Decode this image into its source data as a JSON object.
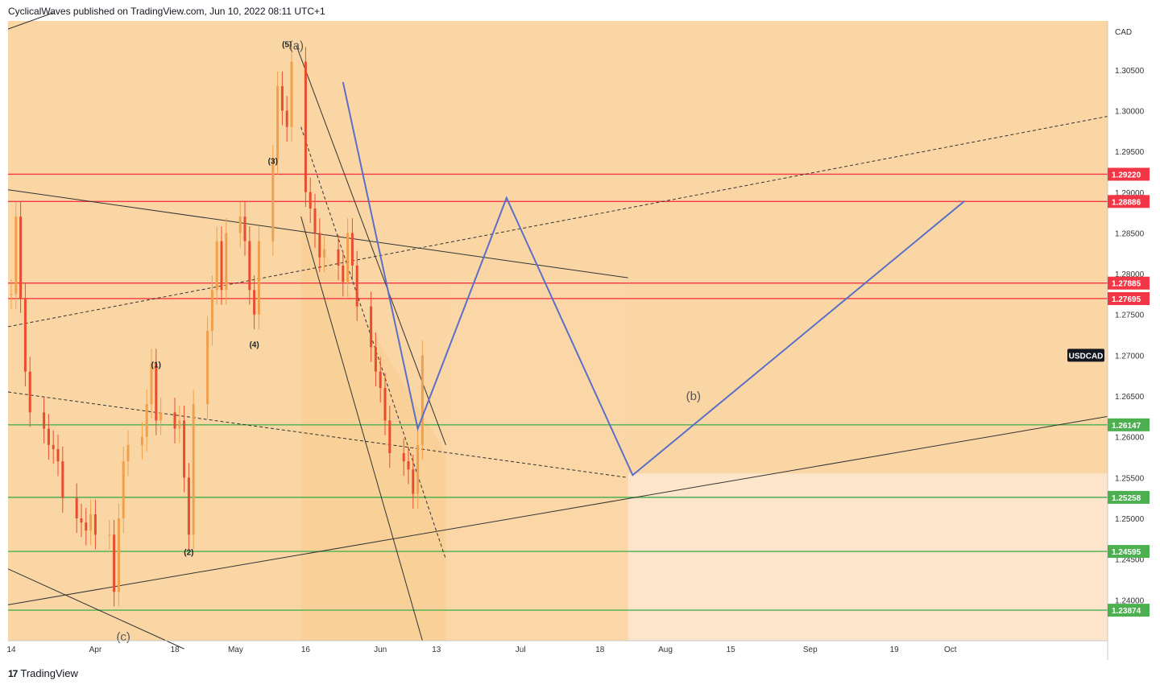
{
  "header": {
    "publish_line": "CyclicalWaves published on TradingView.com, Jun 10, 2022 08:11 UTC+1"
  },
  "footer": {
    "logo_mark": "17",
    "brand": "TradingView"
  },
  "colors": {
    "background": "#fad6a5",
    "light_zone": "#fce5ca",
    "candle_down": "#e84d2e",
    "candle_up": "#f0a04b",
    "resistance": "#f23645",
    "support": "#4caf50",
    "projection": "#5b6fc9",
    "trendline": "#333333"
  },
  "chart_data": {
    "type": "line",
    "symbol": "USDCAD",
    "currency": "CAD",
    "ylim": [
      1.235,
      1.311
    ],
    "x_ticks": [
      "14",
      "Apr",
      "18",
      "May",
      "16",
      "Jun",
      "13",
      "Jul",
      "18",
      "Aug",
      "15",
      "Sep",
      "19",
      "Oct"
    ],
    "y_ticks": [
      "1.30500",
      "1.30000",
      "1.29500",
      "1.29000",
      "1.28500",
      "1.28000",
      "1.27500",
      "1.27000",
      "1.26500",
      "1.26000",
      "1.25500",
      "1.25000",
      "1.24500",
      "1.24000"
    ],
    "resistance_levels": [
      "1.29220",
      "1.28886",
      "1.27885",
      "1.27695"
    ],
    "support_levels": [
      "1.26147",
      "1.25258",
      "1.24595",
      "1.23874"
    ],
    "wave_labels": [
      "(1)",
      "(2)",
      "(3)",
      "(4)",
      "(5)",
      "(a)",
      "(b)",
      "(c)"
    ],
    "price_series": {
      "name": "USDCAD",
      "points": [
        [
          "Mar 14",
          1.2775
        ],
        [
          "Mar 15",
          1.287
        ],
        [
          "Mar 16",
          1.277
        ],
        [
          "Mar 17",
          1.268
        ],
        [
          "Mar 18",
          1.263
        ],
        [
          "Mar 21",
          1.261
        ],
        [
          "Mar 22",
          1.259
        ],
        [
          "Mar 23",
          1.2585
        ],
        [
          "Mar 24",
          1.257
        ],
        [
          "Mar 25",
          1.2525
        ],
        [
          "Mar 28",
          1.25
        ],
        [
          "Mar 29",
          1.2495
        ],
        [
          "Mar 30",
          1.2485
        ],
        [
          "Mar 31",
          1.2505
        ],
        [
          "Apr 1",
          1.248
        ],
        [
          "Apr 4",
          1.248
        ],
        [
          "Apr 5",
          1.241
        ],
        [
          "Apr 6",
          1.25
        ],
        [
          "Apr 7",
          1.257
        ],
        [
          "Apr 8",
          1.259
        ],
        [
          "Apr 11",
          1.26
        ],
        [
          "Apr 12",
          1.264
        ],
        [
          "Apr 13",
          1.269
        ],
        [
          "Apr 14",
          1.262
        ],
        [
          "Apr 15",
          1.263
        ],
        [
          "Apr 18",
          1.261
        ],
        [
          "Apr 19",
          1.262
        ],
        [
          "Apr 20",
          1.255
        ],
        [
          "Apr 21",
          1.248
        ],
        [
          "Apr 22",
          1.264
        ],
        [
          "Apr 25",
          1.273
        ],
        [
          "Apr 26",
          1.278
        ],
        [
          "Apr 27",
          1.284
        ],
        [
          "Apr 28",
          1.278
        ],
        [
          "Apr 29",
          1.285
        ],
        [
          "May 2",
          1.287
        ],
        [
          "May 3",
          1.284
        ],
        [
          "May 4",
          1.278
        ],
        [
          "May 5",
          1.275
        ],
        [
          "May 6",
          1.284
        ],
        [
          "May 9",
          1.294
        ],
        [
          "May 10",
          1.303
        ],
        [
          "May 11",
          1.3
        ],
        [
          "May 12",
          1.298
        ],
        [
          "May 13",
          1.306
        ],
        [
          "May 16",
          1.29
        ],
        [
          "May 17",
          1.288
        ],
        [
          "May 18",
          1.285
        ],
        [
          "May 19",
          1.282
        ],
        [
          "May 20",
          1.283
        ],
        [
          "May 23",
          1.281
        ],
        [
          "May 24",
          1.279
        ],
        [
          "May 25",
          1.285
        ],
        [
          "May 26",
          1.281
        ],
        [
          "May 27",
          1.276
        ],
        [
          "May 30",
          1.271
        ],
        [
          "May 31",
          1.268
        ],
        [
          "Jun 1",
          1.266
        ],
        [
          "Jun 2",
          1.262
        ],
        [
          "Jun 3",
          1.258
        ],
        [
          "Jun 6",
          1.257
        ],
        [
          "Jun 7",
          1.256
        ],
        [
          "Jun 8",
          1.253
        ],
        [
          "Jun 9",
          1.259
        ],
        [
          "Jun 10",
          1.27
        ]
      ]
    },
    "projection_path": [
      [
        "May 24",
        1.3035
      ],
      [
        "Jun 9",
        1.261
      ],
      [
        "Jun 28",
        1.2893
      ],
      [
        "Jul 25",
        1.2553
      ],
      [
        "Oct 4",
        1.2889
      ]
    ],
    "grid": false,
    "legend": "none"
  }
}
